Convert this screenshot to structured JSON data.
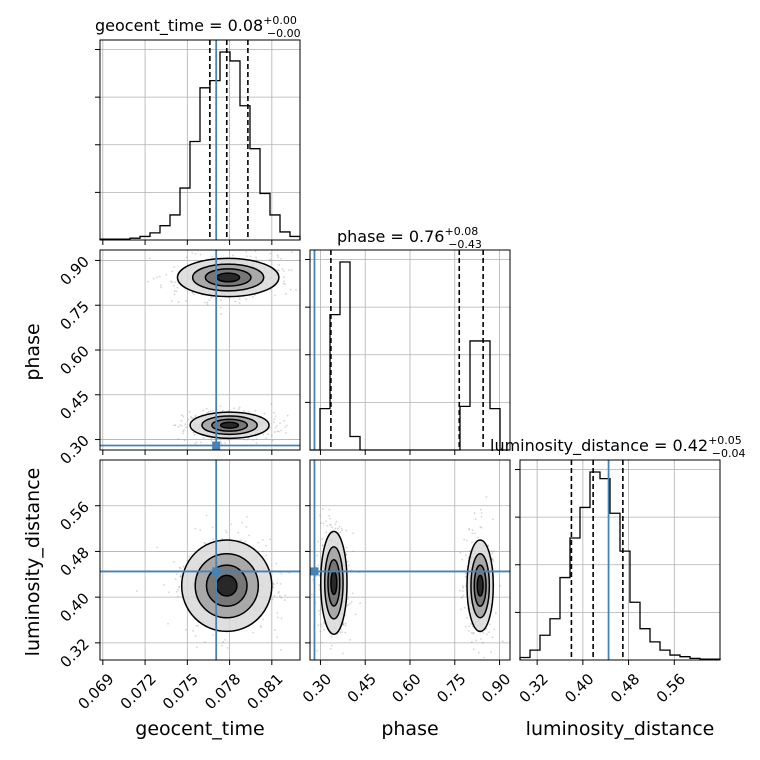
{
  "chart_data": {
    "type": "corner",
    "parameters": [
      "geocent_time",
      "phase",
      "luminosity_distance"
    ],
    "truths": {
      "geocent_time": 0.07705,
      "phase": 0.28,
      "luminosity_distance": 0.445
    },
    "grid": true,
    "titles": [
      {
        "param": "geocent_time",
        "main": "geocent_time = 0.08",
        "sup": "+0.00",
        "sub": "−0.00",
        "quantiles": [
          0.0766,
          0.0778,
          0.0793
        ]
      },
      {
        "param": "phase",
        "main": "phase = 0.76",
        "sup": "+0.08",
        "sub": "−0.43",
        "quantiles": [
          0.335,
          0.765,
          0.845
        ]
      },
      {
        "param": "luminosity_distance",
        "main": "luminosity_distance = 0.42",
        "sup": "+0.05",
        "sub": "−0.04",
        "quantiles": [
          0.38,
          0.418,
          0.47
        ]
      }
    ],
    "axes": {
      "geocent_time": {
        "range": [
          0.0688,
          0.083
        ],
        "ticks": [
          "0.069",
          "0.072",
          "0.075",
          "0.078",
          "0.081"
        ],
        "tickvals": [
          0.069,
          0.072,
          0.075,
          0.078,
          0.081
        ]
      },
      "phase": {
        "range": [
          0.265,
          0.935
        ],
        "ticks": [
          "0.30",
          "0.45",
          "0.60",
          "0.75",
          "0.90"
        ],
        "tickvals": [
          0.3,
          0.45,
          0.6,
          0.75,
          0.9
        ]
      },
      "luminosity_distance": {
        "range": [
          0.29,
          0.64
        ],
        "ticks": [
          "0.32",
          "0.40",
          "0.48",
          "0.56"
        ],
        "tickvals": [
          0.32,
          0.4,
          0.48,
          0.56
        ]
      }
    },
    "hist_geocent_time": {
      "edges_start": 0.0688,
      "bin_width": 0.00071,
      "counts": [
        1,
        1,
        1,
        2,
        4,
        8,
        16,
        28,
        58,
        110,
        170,
        178,
        210,
        200,
        150,
        102,
        52,
        28,
        9,
        4
      ]
    },
    "hist_phase": {
      "edges_start": 0.265,
      "bin_width": 0.0335,
      "counts": [
        0,
        55,
        180,
        250,
        18,
        0,
        0,
        0,
        0,
        0,
        0,
        0,
        0,
        0,
        0,
        58,
        145,
        145,
        55,
        0
      ]
    },
    "hist_luminosity_distance": {
      "edges_start": 0.29,
      "bin_width": 0.0175,
      "counts": [
        3,
        12,
        30,
        50,
        100,
        148,
        185,
        228,
        220,
        178,
        132,
        70,
        38,
        22,
        12,
        6,
        4,
        2,
        1,
        1
      ]
    },
    "clusters": {
      "time_phase": [
        {
          "x": 0.0779,
          "y": 0.843,
          "sx": 0.0018,
          "sy": 0.032,
          "r": -0.2
        },
        {
          "x": 0.078,
          "y": 0.348,
          "sx": 0.0014,
          "sy": 0.022,
          "r": 0
        }
      ],
      "time_dist": [
        {
          "x": 0.0778,
          "y": 0.42,
          "sx": 0.0016,
          "sy": 0.04,
          "r": 0
        }
      ],
      "phase_dist": [
        {
          "x": 0.345,
          "y": 0.425,
          "sx": 0.022,
          "sy": 0.045,
          "r": 0
        },
        {
          "x": 0.835,
          "y": 0.42,
          "sx": 0.022,
          "sy": 0.04,
          "r": 0
        }
      ]
    }
  }
}
